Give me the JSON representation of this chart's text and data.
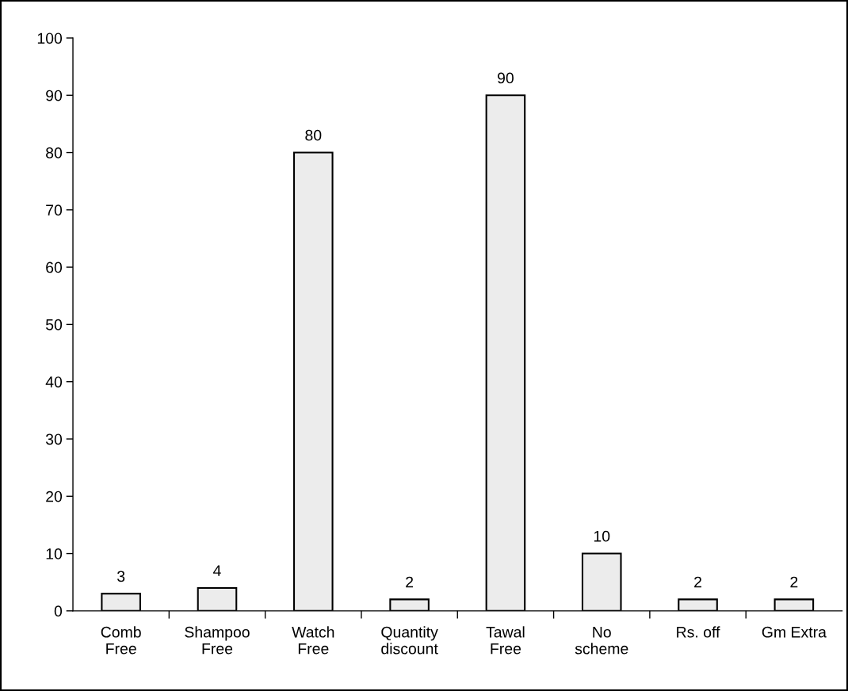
{
  "chart_data": {
    "type": "bar",
    "categories": [
      "Comb\nFree",
      "Shampoo\nFree",
      "Watch\nFree",
      "Quantity\ndiscount",
      "Tawal\nFree",
      "No\nscheme",
      "Rs. off",
      "Gm Extra"
    ],
    "values": [
      3,
      4,
      80,
      2,
      90,
      10,
      2,
      2
    ],
    "color": "#ececec",
    "ylim": [
      0,
      100
    ],
    "yticks": [
      0,
      10,
      20,
      30,
      40,
      50,
      60,
      70,
      80,
      90,
      100
    ],
    "data_labels": true,
    "grid": false,
    "legend": false
  }
}
